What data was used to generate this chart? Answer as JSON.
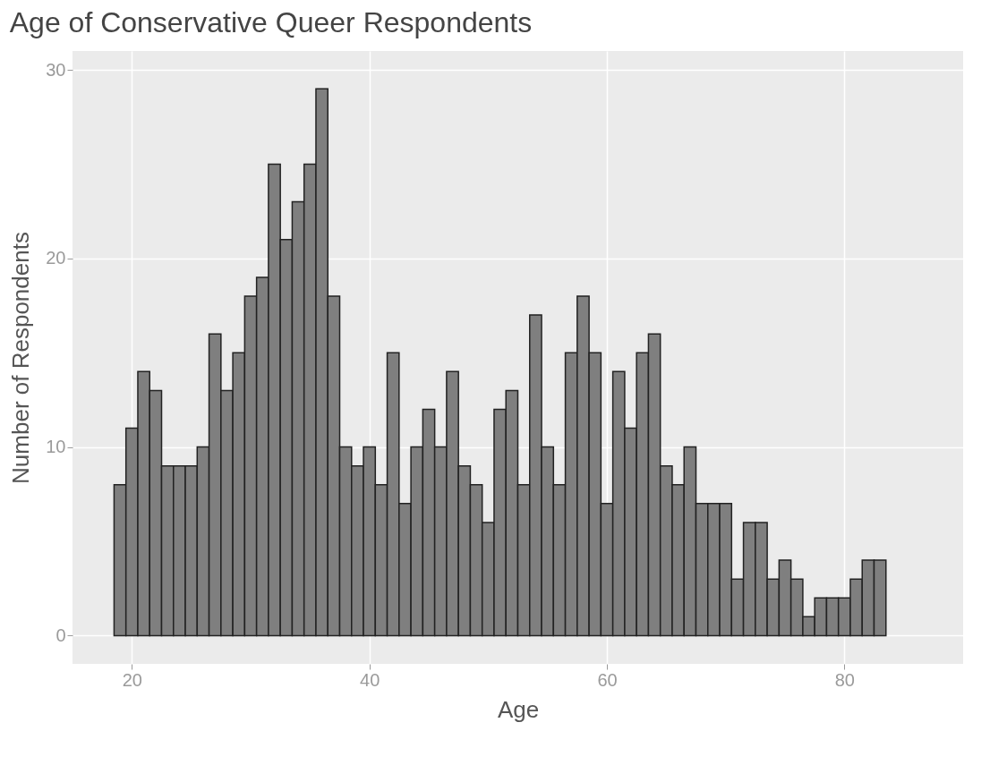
{
  "chart_data": {
    "type": "histogram",
    "title": "Age of Conservative Queer Respondents",
    "xlabel": "Age",
    "ylabel": "Number of Respondents",
    "bins": [
      18.5,
      19.5,
      20.5,
      21.5,
      22.5,
      23.5,
      24.5,
      25.5,
      26.5,
      27.5,
      28.5,
      29.5,
      30.5,
      31.5,
      32.5,
      33.5,
      34.5,
      35.5,
      36.5,
      37.5,
      38.5,
      39.5,
      40.5,
      41.5,
      42.5,
      43.5,
      44.5,
      45.5,
      46.5,
      47.5,
      48.5,
      49.5,
      50.5,
      51.5,
      52.5,
      53.5,
      54.5,
      55.5,
      56.5,
      57.5,
      58.5,
      59.5,
      60.5,
      61.5,
      62.5,
      63.5,
      64.5,
      65.5,
      66.5,
      67.5,
      68.5,
      69.5,
      70.5,
      71.5,
      72.5,
      73.5,
      74.5,
      75.5,
      76.5,
      77.5,
      78.5,
      79.5,
      80.5,
      81.5,
      82.5,
      83.5
    ],
    "values": [
      8,
      11,
      14,
      13,
      9,
      9,
      9,
      10,
      16,
      13,
      15,
      18,
      19,
      25,
      21,
      23,
      25,
      29,
      18,
      10,
      9,
      10,
      8,
      15,
      7,
      10,
      12,
      10,
      14,
      9,
      8,
      6,
      12,
      13,
      8,
      17,
      10,
      8,
      15,
      18,
      15,
      7,
      14,
      11,
      15,
      16,
      9,
      8,
      10,
      7,
      7,
      7,
      3,
      6,
      6,
      3,
      4,
      3,
      1,
      2,
      2,
      2,
      3,
      4,
      4
    ],
    "color": "#7f7f7f",
    "xlim": [
      15,
      90
    ],
    "xticks": [
      20,
      40,
      60,
      80
    ],
    "ylim": [
      -1.5,
      31
    ],
    "yticks": [
      0,
      10,
      20,
      30
    ],
    "grid": true
  }
}
